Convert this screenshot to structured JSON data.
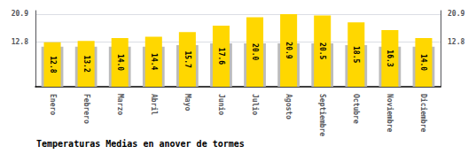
{
  "chart_data": {
    "type": "bar",
    "title": "Temperaturas Medias en anover de tormes",
    "categories": [
      "Enero",
      "Febrero",
      "Marzo",
      "Abril",
      "Mayo",
      "Junio",
      "Julio",
      "Agosto",
      "Septiembre",
      "Octubre",
      "Noviembre",
      "Diciembre"
    ],
    "series": [
      {
        "color": "#BBBBBB",
        "values": [
          11.5,
          11.5,
          11.5,
          11.5,
          12.0,
          12.5,
          12.5,
          12.5,
          12.5,
          12.0,
          11.5,
          11.5
        ]
      },
      {
        "color": "#FFD700",
        "values": [
          12.8,
          13.2,
          14.0,
          14.4,
          15.7,
          17.6,
          20.0,
          20.9,
          20.5,
          18.5,
          16.3,
          14.0
        ],
        "value_labels": [
          "12.8",
          "13.2",
          "14.0",
          "14.4",
          "15.7",
          "17.6",
          "20.0",
          "20.9",
          "20.5",
          "18.5",
          "16.3",
          "14.0"
        ],
        "data_labels": true
      }
    ],
    "ylim": [
      0,
      21.9
    ],
    "yticks": [
      12.8,
      20.9
    ],
    "y2lim": [
      0,
      21.9
    ],
    "y2ticks": [
      12.8,
      20.9
    ],
    "grid": true
  }
}
